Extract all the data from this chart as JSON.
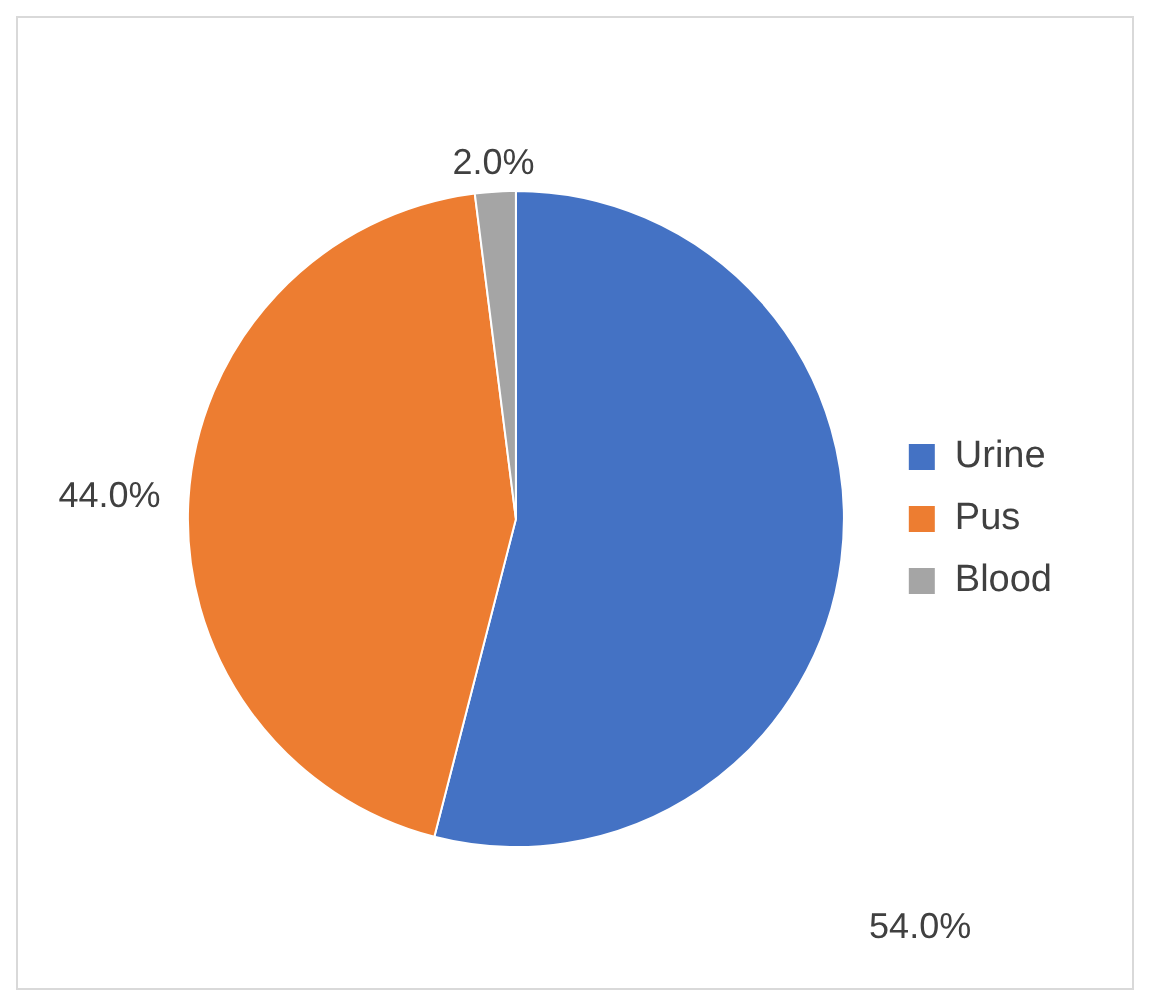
{
  "chart_data": {
    "type": "pie",
    "categories": [
      "Urine",
      "Pus",
      "Blood"
    ],
    "values": [
      54,
      44,
      2
    ],
    "colors": [
      "#4472c4",
      "#ed7d31",
      "#a5a5a5"
    ],
    "value_labels": [
      "54.0%",
      "44.0%",
      "2.0%"
    ],
    "legend": "right"
  }
}
